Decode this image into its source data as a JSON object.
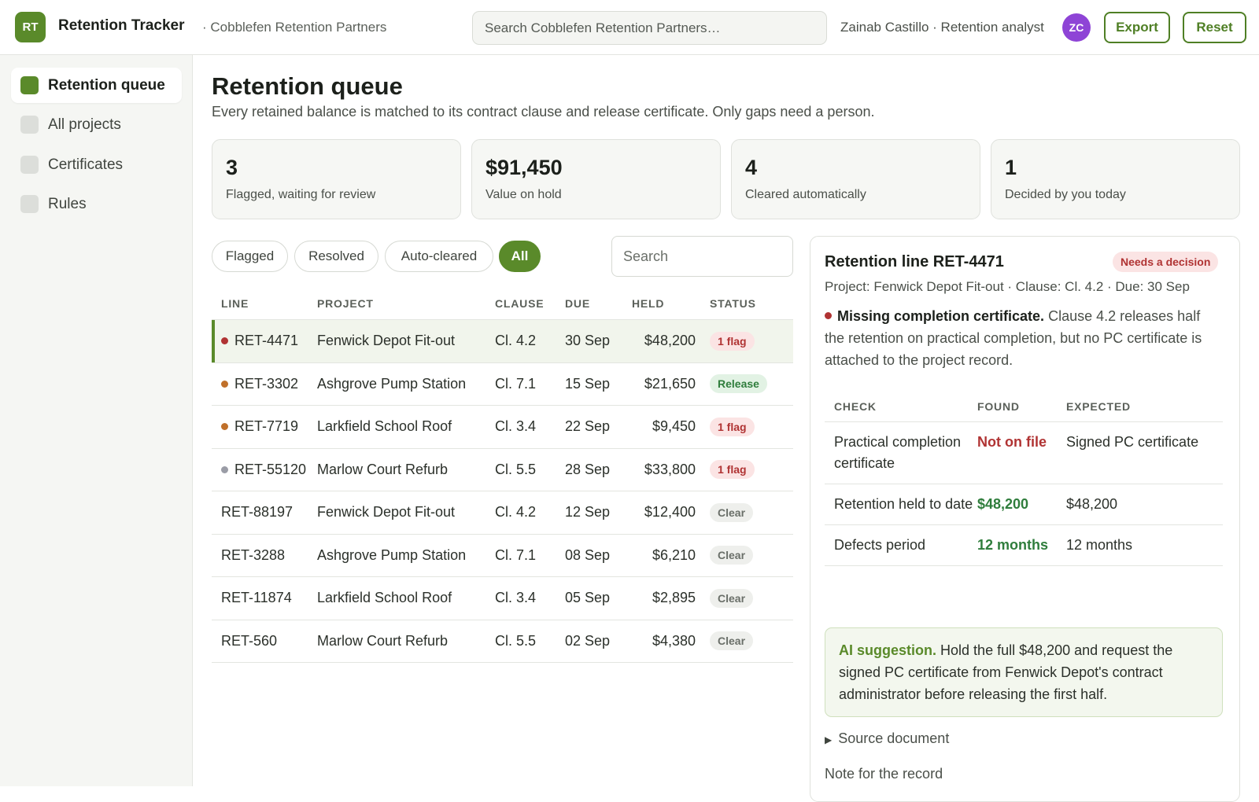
{
  "app": {
    "logo_initials": "RT",
    "title": "Retention Tracker",
    "workspace": "· Cobblefen Retention Partners",
    "search_placeholder": "Search Cobblefen Retention Partners…",
    "user": "Zainab Castillo · Retention analyst",
    "avatar_initials": "ZC",
    "export_label": "Export",
    "reset_label": "Reset"
  },
  "sidebar": {
    "items": [
      {
        "label": "Retention queue",
        "active": true
      },
      {
        "label": "All projects",
        "active": false
      },
      {
        "label": "Certificates",
        "active": false
      },
      {
        "label": "Rules",
        "active": false
      }
    ]
  },
  "page": {
    "title": "Retention queue",
    "subtitle": "Every retained balance is matched to its contract clause and release certificate. Only gaps need a person."
  },
  "stats": [
    {
      "value": "3",
      "label": "Flagged, waiting for review"
    },
    {
      "value": "$91,450",
      "label": "Value on hold"
    },
    {
      "value": "4",
      "label": "Cleared automatically"
    },
    {
      "value": "1",
      "label": "Decided by you today"
    }
  ],
  "filters": {
    "chips": [
      "Flagged",
      "Resolved",
      "Auto-cleared",
      "All"
    ],
    "active": "All",
    "search_placeholder": "Search"
  },
  "table": {
    "headers": {
      "line": "LINE",
      "project": "PROJECT",
      "clause": "CLAUSE",
      "due": "DUE",
      "held": "HELD",
      "status": "STATUS"
    },
    "rows": [
      {
        "line": "RET-4471",
        "project": "Fenwick Depot Fit-out",
        "clause": "Cl. 4.2",
        "due": "30 Sep",
        "held": "$48,200",
        "status": "1 flag",
        "status_type": "flag",
        "dot": "#b03333",
        "selected": true
      },
      {
        "line": "RET-3302",
        "project": "Ashgrove Pump Station",
        "clause": "Cl. 7.1",
        "due": "15 Sep",
        "held": "$21,650",
        "status": "Release",
        "status_type": "release",
        "dot": "#c0702a",
        "selected": false
      },
      {
        "line": "RET-7719",
        "project": "Larkfield School Roof",
        "clause": "Cl. 3.4",
        "due": "22 Sep",
        "held": "$9,450",
        "status": "1 flag",
        "status_type": "flag",
        "dot": "#c0702a",
        "selected": false
      },
      {
        "line": "RET-55120",
        "project": "Marlow Court Refurb",
        "clause": "Cl. 5.5",
        "due": "28 Sep",
        "held": "$33,800",
        "status": "1 flag",
        "status_type": "flag",
        "dot": "#9a9ca6",
        "selected": false
      },
      {
        "line": "RET-88197",
        "project": "Fenwick Depot Fit-out",
        "clause": "Cl. 4.2",
        "due": "12 Sep",
        "held": "$12,400",
        "status": "Clear",
        "status_type": "clear",
        "dot": "",
        "selected": false
      },
      {
        "line": "RET-3288",
        "project": "Ashgrove Pump Station",
        "clause": "Cl. 7.1",
        "due": "08 Sep",
        "held": "$6,210",
        "status": "Clear",
        "status_type": "clear",
        "dot": "",
        "selected": false
      },
      {
        "line": "RET-11874",
        "project": "Larkfield School Roof",
        "clause": "Cl. 3.4",
        "due": "05 Sep",
        "held": "$2,895",
        "status": "Clear",
        "status_type": "clear",
        "dot": "",
        "selected": false
      },
      {
        "line": "RET-560",
        "project": "Marlow Court Refurb",
        "clause": "Cl. 5.5",
        "due": "02 Sep",
        "held": "$4,380",
        "status": "Clear",
        "status_type": "clear",
        "dot": "",
        "selected": false
      }
    ]
  },
  "detail": {
    "title": "Retention line RET-4471",
    "badge": "Needs a decision",
    "meta": "Project: Fenwick Depot Fit-out · Clause: Cl. 4.2 · Due: 30 Sep",
    "issue_title": "Missing completion certificate.",
    "issue_text": "Clause 4.2 releases half the retention on practical completion, but no PC certificate is attached to the project record.",
    "checks": {
      "headers": {
        "check": "CHECK",
        "found": "FOUND",
        "expected": "EXPECTED"
      },
      "rows": [
        {
          "check": "Practical completion certificate",
          "found": "Not on file",
          "found_type": "bad",
          "expected": "Signed PC certificate"
        },
        {
          "check": "Retention held to date",
          "found": "$48,200",
          "found_type": "ok",
          "expected": "$48,200"
        },
        {
          "check": "Defects period",
          "found": "12 months",
          "found_type": "ok",
          "expected": "12 months"
        }
      ]
    },
    "ai_label": "AI suggestion.",
    "ai_text": "Hold the full $48,200 and request the signed PC certificate from Fenwick Depot's contract administrator before releasing the first half.",
    "source_label": "Source document",
    "note_label": "Note for the record"
  },
  "colors": {
    "accent": "#5a8a2a",
    "danger": "#b03333",
    "success": "#2f7d3c",
    "avatar": "#8e44d6"
  }
}
